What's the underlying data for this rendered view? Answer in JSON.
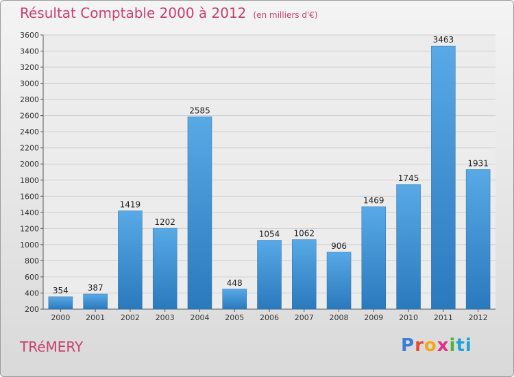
{
  "header": {
    "title": "Résultat Comptable 2000 à 2012",
    "subtitle": "(en milliers d'€)"
  },
  "footer": {
    "town": "TRéMERY",
    "brand": "Proxiti"
  },
  "chart_data": {
    "type": "bar",
    "categories": [
      "2000",
      "2001",
      "2002",
      "2003",
      "2004",
      "2005",
      "2006",
      "2007",
      "2008",
      "2009",
      "2010",
      "2011",
      "2012"
    ],
    "values": [
      354,
      387,
      1419,
      1202,
      2585,
      448,
      1054,
      1062,
      906,
      1469,
      1745,
      3463,
      1931
    ],
    "ylim": [
      200,
      3600
    ],
    "yticks": [
      200,
      400,
      600,
      800,
      1000,
      1200,
      1400,
      1600,
      1800,
      2000,
      2200,
      2400,
      2600,
      2800,
      3000,
      3200,
      3400,
      3600
    ],
    "grid": true,
    "colors": {
      "bar": "#3f95d6",
      "bar_dark": "#2a79bd",
      "grid": "#cfcfcf",
      "axis": "#555555"
    }
  }
}
